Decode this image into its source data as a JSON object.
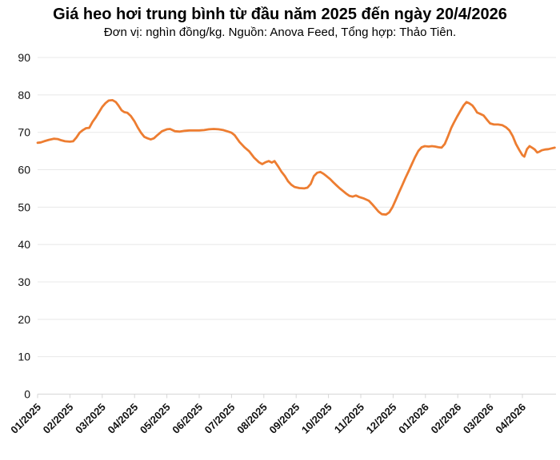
{
  "header": {
    "title": "Giá heo hơi trung bình từ đầu năm 2025 đến ngày 20/4/2026",
    "subtitle": "Đơn vị: nghìn đồng/kg. Nguồn: Anova Feed, Tổng hợp: Thảo Tiên."
  },
  "chart_data": {
    "type": "line",
    "title": "Giá heo hơi trung bình từ đầu năm 2025 đến ngày 20/4/2026",
    "subtitle": "Đơn vị: nghìn đồng/kg. Nguồn: Anova Feed, Tổng hợp: Thảo Tiên.",
    "ylabel": "nghìn đồng/kg",
    "ylim": [
      0,
      90
    ],
    "y_ticks": [
      0,
      10,
      20,
      30,
      40,
      50,
      60,
      70,
      80,
      90
    ],
    "x_tick_labels": [
      "01/2025",
      "02/2025",
      "03/2025",
      "04/2025",
      "05/2025",
      "06/2025",
      "07/2025",
      "08/2025",
      "09/2025",
      "10/2025",
      "11/2025",
      "12/2025",
      "01/2026",
      "02/2026",
      "03/2026",
      "04/2026"
    ],
    "grid": true,
    "legend": "none",
    "line_color": "#ED7D31",
    "grid_color": "#e8e8e8",
    "axis_color": "#d6d6d6",
    "text_color": "#111111",
    "series": [
      {
        "name": "Giá heo hơi trung bình",
        "x_unit": "months since 01/2025",
        "points": [
          [
            0.0,
            67.2
          ],
          [
            0.1,
            67.3
          ],
          [
            0.2,
            67.6
          ],
          [
            0.35,
            68.0
          ],
          [
            0.5,
            68.3
          ],
          [
            0.62,
            68.2
          ],
          [
            0.72,
            67.9
          ],
          [
            0.85,
            67.6
          ],
          [
            1.0,
            67.5
          ],
          [
            1.1,
            67.6
          ],
          [
            1.2,
            68.6
          ],
          [
            1.3,
            69.9
          ],
          [
            1.4,
            70.6
          ],
          [
            1.5,
            71.1
          ],
          [
            1.6,
            71.2
          ],
          [
            1.7,
            72.8
          ],
          [
            1.8,
            74.0
          ],
          [
            1.9,
            75.4
          ],
          [
            2.0,
            76.8
          ],
          [
            2.1,
            77.8
          ],
          [
            2.2,
            78.5
          ],
          [
            2.32,
            78.6
          ],
          [
            2.42,
            78.1
          ],
          [
            2.5,
            77.2
          ],
          [
            2.6,
            75.9
          ],
          [
            2.68,
            75.4
          ],
          [
            2.78,
            75.2
          ],
          [
            2.88,
            74.4
          ],
          [
            3.0,
            72.9
          ],
          [
            3.1,
            71.3
          ],
          [
            3.2,
            69.9
          ],
          [
            3.3,
            68.8
          ],
          [
            3.4,
            68.4
          ],
          [
            3.5,
            68.1
          ],
          [
            3.6,
            68.4
          ],
          [
            3.7,
            69.2
          ],
          [
            3.85,
            70.3
          ],
          [
            4.0,
            70.8
          ],
          [
            4.1,
            70.9
          ],
          [
            4.25,
            70.3
          ],
          [
            4.4,
            70.2
          ],
          [
            4.55,
            70.4
          ],
          [
            4.7,
            70.5
          ],
          [
            4.85,
            70.5
          ],
          [
            5.0,
            70.5
          ],
          [
            5.15,
            70.6
          ],
          [
            5.3,
            70.8
          ],
          [
            5.45,
            70.9
          ],
          [
            5.6,
            70.8
          ],
          [
            5.75,
            70.6
          ],
          [
            5.9,
            70.2
          ],
          [
            6.0,
            69.9
          ],
          [
            6.1,
            69.2
          ],
          [
            6.25,
            67.4
          ],
          [
            6.4,
            66.0
          ],
          [
            6.55,
            64.9
          ],
          [
            6.7,
            63.2
          ],
          [
            6.85,
            62.0
          ],
          [
            6.95,
            61.5
          ],
          [
            7.05,
            62.0
          ],
          [
            7.15,
            62.3
          ],
          [
            7.25,
            61.9
          ],
          [
            7.33,
            62.3
          ],
          [
            7.45,
            60.8
          ],
          [
            7.55,
            59.4
          ],
          [
            7.65,
            58.3
          ],
          [
            7.75,
            56.9
          ],
          [
            7.85,
            56.0
          ],
          [
            7.95,
            55.4
          ],
          [
            8.1,
            55.1
          ],
          [
            8.25,
            55.0
          ],
          [
            8.35,
            55.2
          ],
          [
            8.45,
            56.2
          ],
          [
            8.55,
            58.3
          ],
          [
            8.65,
            59.2
          ],
          [
            8.75,
            59.4
          ],
          [
            8.85,
            58.9
          ],
          [
            8.95,
            58.2
          ],
          [
            9.05,
            57.5
          ],
          [
            9.15,
            56.6
          ],
          [
            9.25,
            55.8
          ],
          [
            9.35,
            55.0
          ],
          [
            9.45,
            54.3
          ],
          [
            9.55,
            53.6
          ],
          [
            9.65,
            53.0
          ],
          [
            9.75,
            52.8
          ],
          [
            9.85,
            53.1
          ],
          [
            9.95,
            52.7
          ],
          [
            10.1,
            52.3
          ],
          [
            10.25,
            51.7
          ],
          [
            10.35,
            50.8
          ],
          [
            10.45,
            49.8
          ],
          [
            10.55,
            48.8
          ],
          [
            10.65,
            48.1
          ],
          [
            10.78,
            48.0
          ],
          [
            10.88,
            48.6
          ],
          [
            10.98,
            50.0
          ],
          [
            11.08,
            51.9
          ],
          [
            11.18,
            53.9
          ],
          [
            11.28,
            55.8
          ],
          [
            11.38,
            57.8
          ],
          [
            11.48,
            59.6
          ],
          [
            11.58,
            61.5
          ],
          [
            11.68,
            63.4
          ],
          [
            11.78,
            65.0
          ],
          [
            11.88,
            66.0
          ],
          [
            11.98,
            66.3
          ],
          [
            12.1,
            66.2
          ],
          [
            12.2,
            66.3
          ],
          [
            12.3,
            66.2
          ],
          [
            12.4,
            66.0
          ],
          [
            12.5,
            65.9
          ],
          [
            12.6,
            66.9
          ],
          [
            12.7,
            69.0
          ],
          [
            12.8,
            71.2
          ],
          [
            12.88,
            72.6
          ],
          [
            12.98,
            74.2
          ],
          [
            13.08,
            75.7
          ],
          [
            13.18,
            77.2
          ],
          [
            13.27,
            78.1
          ],
          [
            13.35,
            77.8
          ],
          [
            13.45,
            77.2
          ],
          [
            13.52,
            76.4
          ],
          [
            13.6,
            75.3
          ],
          [
            13.7,
            74.9
          ],
          [
            13.8,
            74.5
          ],
          [
            13.9,
            73.4
          ],
          [
            14.0,
            72.4
          ],
          [
            14.12,
            72.1
          ],
          [
            14.25,
            72.1
          ],
          [
            14.38,
            71.9
          ],
          [
            14.5,
            71.3
          ],
          [
            14.6,
            70.5
          ],
          [
            14.7,
            69.0
          ],
          [
            14.8,
            66.9
          ],
          [
            14.9,
            65.3
          ],
          [
            15.0,
            63.9
          ],
          [
            15.06,
            63.5
          ],
          [
            15.14,
            65.5
          ],
          [
            15.22,
            66.3
          ],
          [
            15.3,
            65.9
          ],
          [
            15.38,
            65.4
          ],
          [
            15.46,
            64.6
          ],
          [
            15.52,
            64.8
          ],
          [
            15.6,
            65.2
          ],
          [
            15.7,
            65.4
          ],
          [
            15.8,
            65.5
          ],
          [
            15.9,
            65.7
          ],
          [
            16.0,
            65.9
          ]
        ]
      }
    ]
  }
}
